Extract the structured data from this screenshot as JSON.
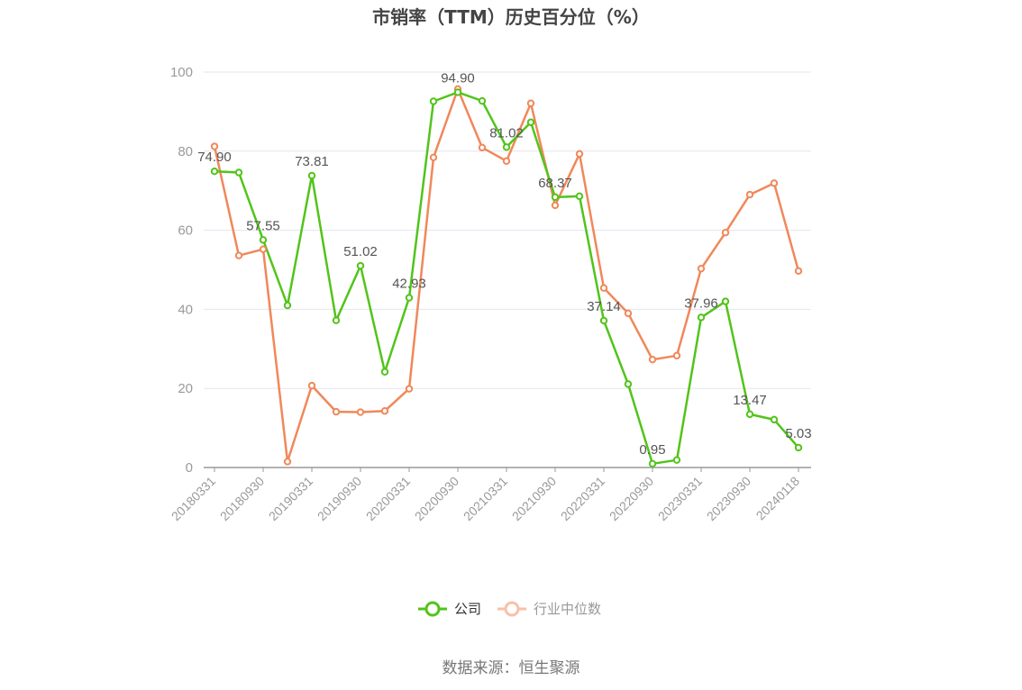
{
  "chart_data": {
    "type": "line",
    "title": "市销率（TTM）历史百分位（%）",
    "categories": [
      "20180331",
      "20180630",
      "20180930",
      "20181231",
      "20190331",
      "20190630",
      "20190930",
      "20191231",
      "20200331",
      "20200630",
      "20200930",
      "20201231",
      "20210331",
      "20210630",
      "20210930",
      "20211231",
      "20220331",
      "20220630",
      "20220930",
      "20221231",
      "20230331",
      "20230630",
      "20230930",
      "20231231",
      "20240118"
    ],
    "x_tick_labels": [
      "20180331",
      "20180930",
      "20190331",
      "20190930",
      "20200331",
      "20200930",
      "20210331",
      "20210930",
      "20220331",
      "20220930",
      "20230331",
      "20230930",
      "20240118"
    ],
    "ylim": [
      0,
      100
    ],
    "y_ticks": [
      "0",
      "20",
      "40",
      "60",
      "80",
      "100"
    ],
    "grid": true,
    "legend_position": "bottom",
    "series": [
      {
        "name": "公司",
        "color": "#52c41a",
        "values": [
          74.9,
          74.6,
          57.55,
          41.0,
          73.81,
          37.2,
          51.02,
          24.2,
          42.93,
          92.6,
          94.9,
          92.7,
          81.02,
          87.3,
          68.37,
          68.6,
          37.14,
          21.1,
          0.95,
          1.9,
          37.96,
          42.0,
          13.47,
          12.1,
          5.03
        ],
        "data_labels": [
          "74.90",
          "",
          "57.55",
          "",
          "73.81",
          "",
          "51.02",
          "",
          "42.93",
          "",
          "94.90",
          "",
          "81.02",
          "",
          "68.37",
          "",
          "37.14",
          "",
          "0.95",
          "",
          "37.96",
          "",
          "13.47",
          "",
          "5.03"
        ]
      },
      {
        "name": "行业中位数",
        "color": "#f0885a",
        "values": [
          81.2,
          53.6,
          55.2,
          1.5,
          20.7,
          14.1,
          14.0,
          14.3,
          19.9,
          78.4,
          95.7,
          80.9,
          77.5,
          92.1,
          66.3,
          79.3,
          45.4,
          39.0,
          27.3,
          28.3,
          50.3,
          59.4,
          69.0,
          71.9,
          49.7
        ]
      }
    ]
  },
  "legend": {
    "items": [
      "公司",
      "行业中位数"
    ]
  },
  "source_text": "数据来源：恒生聚源"
}
